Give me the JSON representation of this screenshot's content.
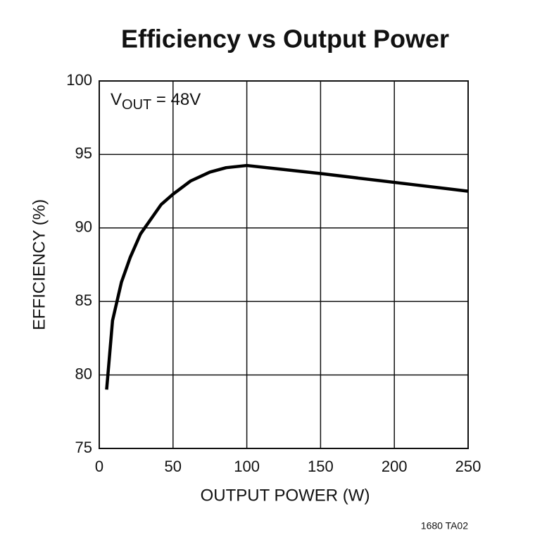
{
  "chart_data": {
    "type": "line",
    "title": "Efficiency vs Output Power",
    "x_label": "OUTPUT POWER (W)",
    "y_label": "EFFICIENCY (%)",
    "annotation": {
      "main": "V",
      "sub": "OUT",
      "rest": " = 48V"
    },
    "footnote": "1680 TA02",
    "x": [
      5,
      9,
      15,
      21,
      28,
      42,
      50,
      62,
      75,
      86,
      100,
      150,
      200,
      250
    ],
    "series": [
      {
        "name": "Efficiency",
        "color": "#000000",
        "values": [
          79.0,
          83.7,
          86.3,
          88.0,
          89.6,
          91.6,
          92.3,
          93.2,
          93.8,
          94.1,
          94.25,
          93.7,
          93.1,
          92.5
        ]
      }
    ],
    "xlim": [
      0,
      250
    ],
    "xticks": [
      0,
      50,
      100,
      150,
      200,
      250
    ],
    "ylim": [
      75,
      100
    ],
    "yticks": [
      75,
      80,
      85,
      90,
      95,
      100
    ],
    "grid": true
  }
}
